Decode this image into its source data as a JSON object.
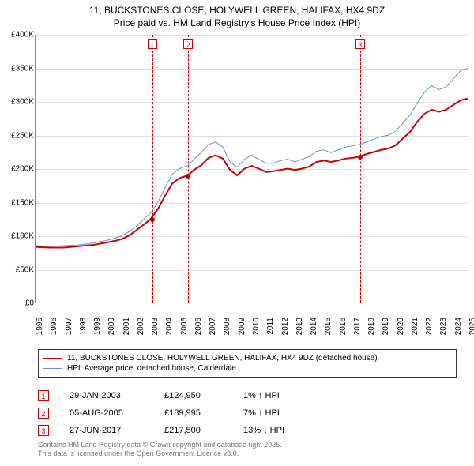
{
  "title_line1": "11, BUCKSTONES CLOSE, HOLYWELL GREEN, HALIFAX, HX4 9DZ",
  "title_line2": "Price paid vs. HM Land Registry's House Price Index (HPI)",
  "chart": {
    "type": "line",
    "background_color": "#ffffff",
    "grid_color": "#dddddd",
    "axis_color": "#888888",
    "y": {
      "min": 0,
      "max": 400000,
      "step": 50000,
      "labels": [
        "£0",
        "£50K",
        "£100K",
        "£150K",
        "£200K",
        "£250K",
        "£300K",
        "£350K",
        "£400K"
      ]
    },
    "x": {
      "min": 1995,
      "max": 2025,
      "labels": [
        "1995",
        "1996",
        "1997",
        "1998",
        "1999",
        "2000",
        "2001",
        "2002",
        "2003",
        "2004",
        "2005",
        "2006",
        "2007",
        "2008",
        "2009",
        "2010",
        "2011",
        "2012",
        "2013",
        "2014",
        "2015",
        "2016",
        "2017",
        "2018",
        "2019",
        "2020",
        "2021",
        "2022",
        "2023",
        "2024",
        "2025"
      ]
    },
    "series": [
      {
        "id": "property",
        "color": "#cc0000",
        "width": 2,
        "points": [
          [
            1995,
            83000
          ],
          [
            1996,
            82000
          ],
          [
            1997,
            82000
          ],
          [
            1998,
            84000
          ],
          [
            1999,
            86000
          ],
          [
            2000,
            90000
          ],
          [
            2000.5,
            92000
          ],
          [
            2001,
            95000
          ],
          [
            2001.5,
            100000
          ],
          [
            2002,
            108000
          ],
          [
            2002.5,
            116000
          ],
          [
            2003,
            125000
          ],
          [
            2003.5,
            140000
          ],
          [
            2004,
            160000
          ],
          [
            2004.5,
            178000
          ],
          [
            2005,
            186000
          ],
          [
            2005.6,
            190000
          ],
          [
            2006,
            198000
          ],
          [
            2006.5,
            205000
          ],
          [
            2007,
            216000
          ],
          [
            2007.5,
            220000
          ],
          [
            2008,
            215000
          ],
          [
            2008.5,
            198000
          ],
          [
            2009,
            190000
          ],
          [
            2009.5,
            200000
          ],
          [
            2010,
            204000
          ],
          [
            2010.5,
            200000
          ],
          [
            2011,
            195000
          ],
          [
            2011.5,
            196000
          ],
          [
            2012,
            198000
          ],
          [
            2012.5,
            200000
          ],
          [
            2013,
            198000
          ],
          [
            2013.5,
            200000
          ],
          [
            2014,
            203000
          ],
          [
            2014.5,
            210000
          ],
          [
            2015,
            212000
          ],
          [
            2015.5,
            210000
          ],
          [
            2016,
            212000
          ],
          [
            2016.5,
            215000
          ],
          [
            2017,
            216000
          ],
          [
            2017.5,
            218000
          ],
          [
            2018,
            222000
          ],
          [
            2018.5,
            225000
          ],
          [
            2019,
            228000
          ],
          [
            2019.5,
            230000
          ],
          [
            2020,
            235000
          ],
          [
            2020.5,
            245000
          ],
          [
            2021,
            255000
          ],
          [
            2021.5,
            270000
          ],
          [
            2022,
            282000
          ],
          [
            2022.5,
            288000
          ],
          [
            2023,
            285000
          ],
          [
            2023.5,
            288000
          ],
          [
            2024,
            295000
          ],
          [
            2024.5,
            302000
          ],
          [
            2025,
            305000
          ]
        ]
      },
      {
        "id": "hpi",
        "color": "#6a8fd8",
        "width": 1,
        "points": [
          [
            1995,
            85000
          ],
          [
            1996,
            84000
          ],
          [
            1997,
            85000
          ],
          [
            1998,
            86000
          ],
          [
            1999,
            89000
          ],
          [
            2000,
            93000
          ],
          [
            2000.5,
            96000
          ],
          [
            2001,
            100000
          ],
          [
            2001.5,
            106000
          ],
          [
            2002,
            114000
          ],
          [
            2002.5,
            124000
          ],
          [
            2003,
            134000
          ],
          [
            2003.5,
            150000
          ],
          [
            2004,
            172000
          ],
          [
            2004.5,
            192000
          ],
          [
            2005,
            200000
          ],
          [
            2005.6,
            205000
          ],
          [
            2006,
            214000
          ],
          [
            2006.5,
            224000
          ],
          [
            2007,
            236000
          ],
          [
            2007.5,
            240000
          ],
          [
            2008,
            232000
          ],
          [
            2008.5,
            210000
          ],
          [
            2009,
            202000
          ],
          [
            2009.5,
            214000
          ],
          [
            2010,
            220000
          ],
          [
            2010.5,
            214000
          ],
          [
            2011,
            208000
          ],
          [
            2011.5,
            208000
          ],
          [
            2012,
            212000
          ],
          [
            2012.5,
            214000
          ],
          [
            2013,
            210000
          ],
          [
            2013.5,
            214000
          ],
          [
            2014,
            218000
          ],
          [
            2014.5,
            226000
          ],
          [
            2015,
            228000
          ],
          [
            2015.5,
            224000
          ],
          [
            2016,
            228000
          ],
          [
            2016.5,
            232000
          ],
          [
            2017,
            234000
          ],
          [
            2017.5,
            236000
          ],
          [
            2018,
            240000
          ],
          [
            2018.5,
            244000
          ],
          [
            2019,
            248000
          ],
          [
            2019.5,
            250000
          ],
          [
            2020,
            256000
          ],
          [
            2020.5,
            268000
          ],
          [
            2021,
            280000
          ],
          [
            2021.5,
            298000
          ],
          [
            2022,
            314000
          ],
          [
            2022.5,
            324000
          ],
          [
            2023,
            318000
          ],
          [
            2023.5,
            322000
          ],
          [
            2024,
            334000
          ],
          [
            2024.5,
            346000
          ],
          [
            2025,
            350000
          ]
        ]
      }
    ],
    "sale_markers": [
      {
        "num": "1",
        "year": 2003.08,
        "price": 124950
      },
      {
        "num": "2",
        "year": 2005.59,
        "price": 189995
      },
      {
        "num": "3",
        "year": 2017.49,
        "price": 217500
      }
    ]
  },
  "legend": {
    "items": [
      {
        "color": "#cc0000",
        "width": 2,
        "label": "11, BUCKSTONES CLOSE, HOLYWELL GREEN, HALIFAX, HX4 9DZ (detached house)"
      },
      {
        "color": "#6a8fd8",
        "width": 1,
        "label": "HPI: Average price, detached house, Calderdale"
      }
    ]
  },
  "sales": [
    {
      "num": "1",
      "date": "29-JAN-2003",
      "price": "£124,950",
      "diff": "1% ↑ HPI"
    },
    {
      "num": "2",
      "date": "05-AUG-2005",
      "price": "£189,995",
      "diff": "7% ↓ HPI"
    },
    {
      "num": "3",
      "date": "27-JUN-2017",
      "price": "£217,500",
      "diff": "13% ↓ HPI"
    }
  ],
  "footer_line1": "Contains HM Land Registry data © Crown copyright and database right 2025.",
  "footer_line2": "This data is licensed under the Open Government Licence v3.0."
}
